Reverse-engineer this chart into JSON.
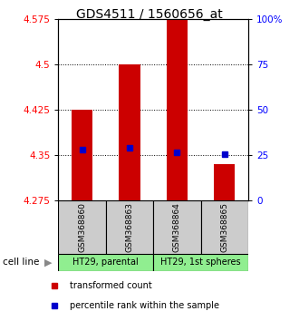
{
  "title": "GDS4511 / 1560656_at",
  "samples": [
    "GSM368860",
    "GSM368863",
    "GSM368864",
    "GSM368865"
  ],
  "bar_bottoms": [
    4.275,
    4.275,
    4.275,
    4.275
  ],
  "bar_tops": [
    4.425,
    4.5,
    4.61,
    4.335
  ],
  "blue_dots": [
    4.36,
    4.362,
    4.355,
    4.352
  ],
  "ylim_left": [
    4.275,
    4.575
  ],
  "ylim_right": [
    0,
    100
  ],
  "yticks_left": [
    4.275,
    4.35,
    4.425,
    4.5,
    4.575
  ],
  "yticks_left_labels": [
    "4.275",
    "4.35",
    "4.425",
    "4.5",
    "4.575"
  ],
  "yticks_right": [
    0,
    25,
    50,
    75,
    100
  ],
  "yticks_right_labels": [
    "0",
    "25",
    "50",
    "75",
    "100%"
  ],
  "hlines": [
    4.35,
    4.425,
    4.5
  ],
  "bar_color": "#cc0000",
  "dot_color": "#0000cc",
  "cell_line_labels": [
    "HT29, parental",
    "HT29, 1st spheres"
  ],
  "cell_line_groups": [
    [
      0,
      1
    ],
    [
      2,
      3
    ]
  ],
  "sample_box_color": "#cccccc",
  "cell_line_color": "#90ee90",
  "title_fontsize": 10,
  "tick_fontsize": 7.5,
  "sample_fontsize": 6.5,
  "cell_fontsize": 7,
  "legend_fontsize": 7,
  "bar_width": 0.45
}
